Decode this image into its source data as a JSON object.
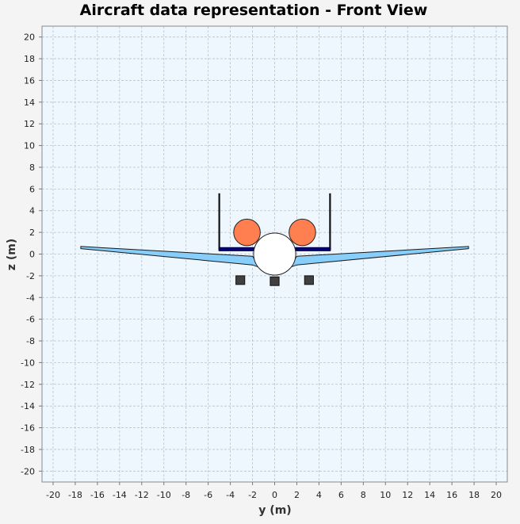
{
  "chart_data": {
    "type": "scatter",
    "title": "Aircraft data representation - Front View",
    "xlabel": "y (m)",
    "ylabel": "z (m)",
    "xlim": [
      -21,
      21
    ],
    "ylim": [
      -21,
      21
    ],
    "xticks": [
      -20,
      -18,
      -16,
      -14,
      -12,
      -10,
      -8,
      -6,
      -4,
      -2,
      0,
      2,
      4,
      6,
      8,
      10,
      12,
      14,
      16,
      18,
      20
    ],
    "yticks": [
      -20,
      -18,
      -16,
      -14,
      -12,
      -10,
      -8,
      -6,
      -4,
      -2,
      0,
      2,
      4,
      6,
      8,
      10,
      12,
      14,
      16,
      18,
      20
    ],
    "grid": true,
    "colors": {
      "plot_background": "#eef6fe",
      "grid": "#b9c3cc",
      "wing": "#87cefa",
      "tail": "#000080",
      "engine": "#ff7f50",
      "fuselage": "#ffffff",
      "landing_gear": "#404040"
    },
    "components": {
      "fuselage": {
        "center": [
          0,
          0
        ],
        "radius": 1.9
      },
      "wing": [
        [
          -17.5,
          0.7
        ],
        [
          -2.0,
          -0.2
        ],
        [
          -1.2,
          -1.4
        ],
        [
          1.2,
          -1.4
        ],
        [
          2.0,
          -0.2
        ],
        [
          17.5,
          0.7
        ],
        [
          17.5,
          0.5
        ],
        [
          2.0,
          -1.0
        ],
        [
          0.9,
          -1.4
        ],
        [
          -0.9,
          -1.4
        ],
        [
          -2.0,
          -1.0
        ],
        [
          -17.5,
          0.5
        ]
      ],
      "horizontal_tail": {
        "y_min": -5.0,
        "y_max": 5.0,
        "z_min": 0.3,
        "z_max": 0.6
      },
      "vertical_tails": [
        {
          "y": -5.0,
          "z_min": 0.3,
          "z_max": 5.6
        },
        {
          "y": 5.0,
          "z_min": 0.3,
          "z_max": 5.6
        }
      ],
      "engines": [
        {
          "center": [
            -2.5,
            2.0
          ],
          "radius": 1.2
        },
        {
          "center": [
            2.5,
            2.0
          ],
          "radius": 1.2
        }
      ],
      "landing_gear": [
        {
          "y": -3.1,
          "z_min": -2.8,
          "z_max": -2.0,
          "width": 0.8
        },
        {
          "y": 0.0,
          "z_min": -2.9,
          "z_max": -2.1,
          "width": 0.8
        },
        {
          "y": 3.1,
          "z_min": -2.8,
          "z_max": -2.0,
          "width": 0.8
        }
      ]
    }
  }
}
